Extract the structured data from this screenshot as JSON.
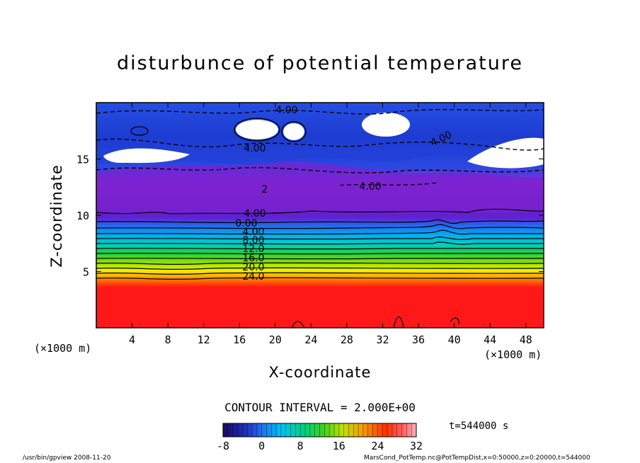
{
  "chart_data": {
    "type": "heatmap",
    "title": "disturbunce of potential temperature",
    "xlabel": "X-coordinate",
    "ylabel": "Z-coordinate",
    "x_unit": "(×1000 m)",
    "y_unit": "(×1000 m)",
    "xlim": [
      0,
      50
    ],
    "ylim": [
      0,
      20
    ],
    "x_ticks": [
      "4",
      "8",
      "12",
      "16",
      "20",
      "24",
      "28",
      "32",
      "36",
      "40",
      "44",
      "48"
    ],
    "y_ticks": [
      "5",
      "10",
      "15"
    ],
    "contour_interval": "CONTOUR INTERVAL = 2.000E+00",
    "time_label": "t=544000 s",
    "colorbar": {
      "min": -8,
      "max": 32,
      "ticks": [
        "-8",
        "0",
        "8",
        "16",
        "24",
        "32"
      ]
    },
    "contour_labels": [
      "4.00",
      "4.00",
      "4.00",
      "4.00",
      "2",
      "4.00",
      "0.00",
      "4.00",
      "8.00",
      "12.0",
      "16.0",
      "20.0",
      "24.0"
    ],
    "colors": {
      "low": "#1010a0",
      "mid_blue": "#2860f0",
      "purple": "#7a1fd0",
      "cyan": "#00c8e8",
      "green": "#30d030",
      "yellow": "#f0f000",
      "orange": "#ff9000",
      "red": "#ff1010"
    }
  },
  "footer": {
    "left": "/usr/bin/gpview  2008-11-20",
    "right": "MarsCond_PotTemp.nc@PotTempDist,x=0:50000,z=0:20000,t=544000"
  }
}
